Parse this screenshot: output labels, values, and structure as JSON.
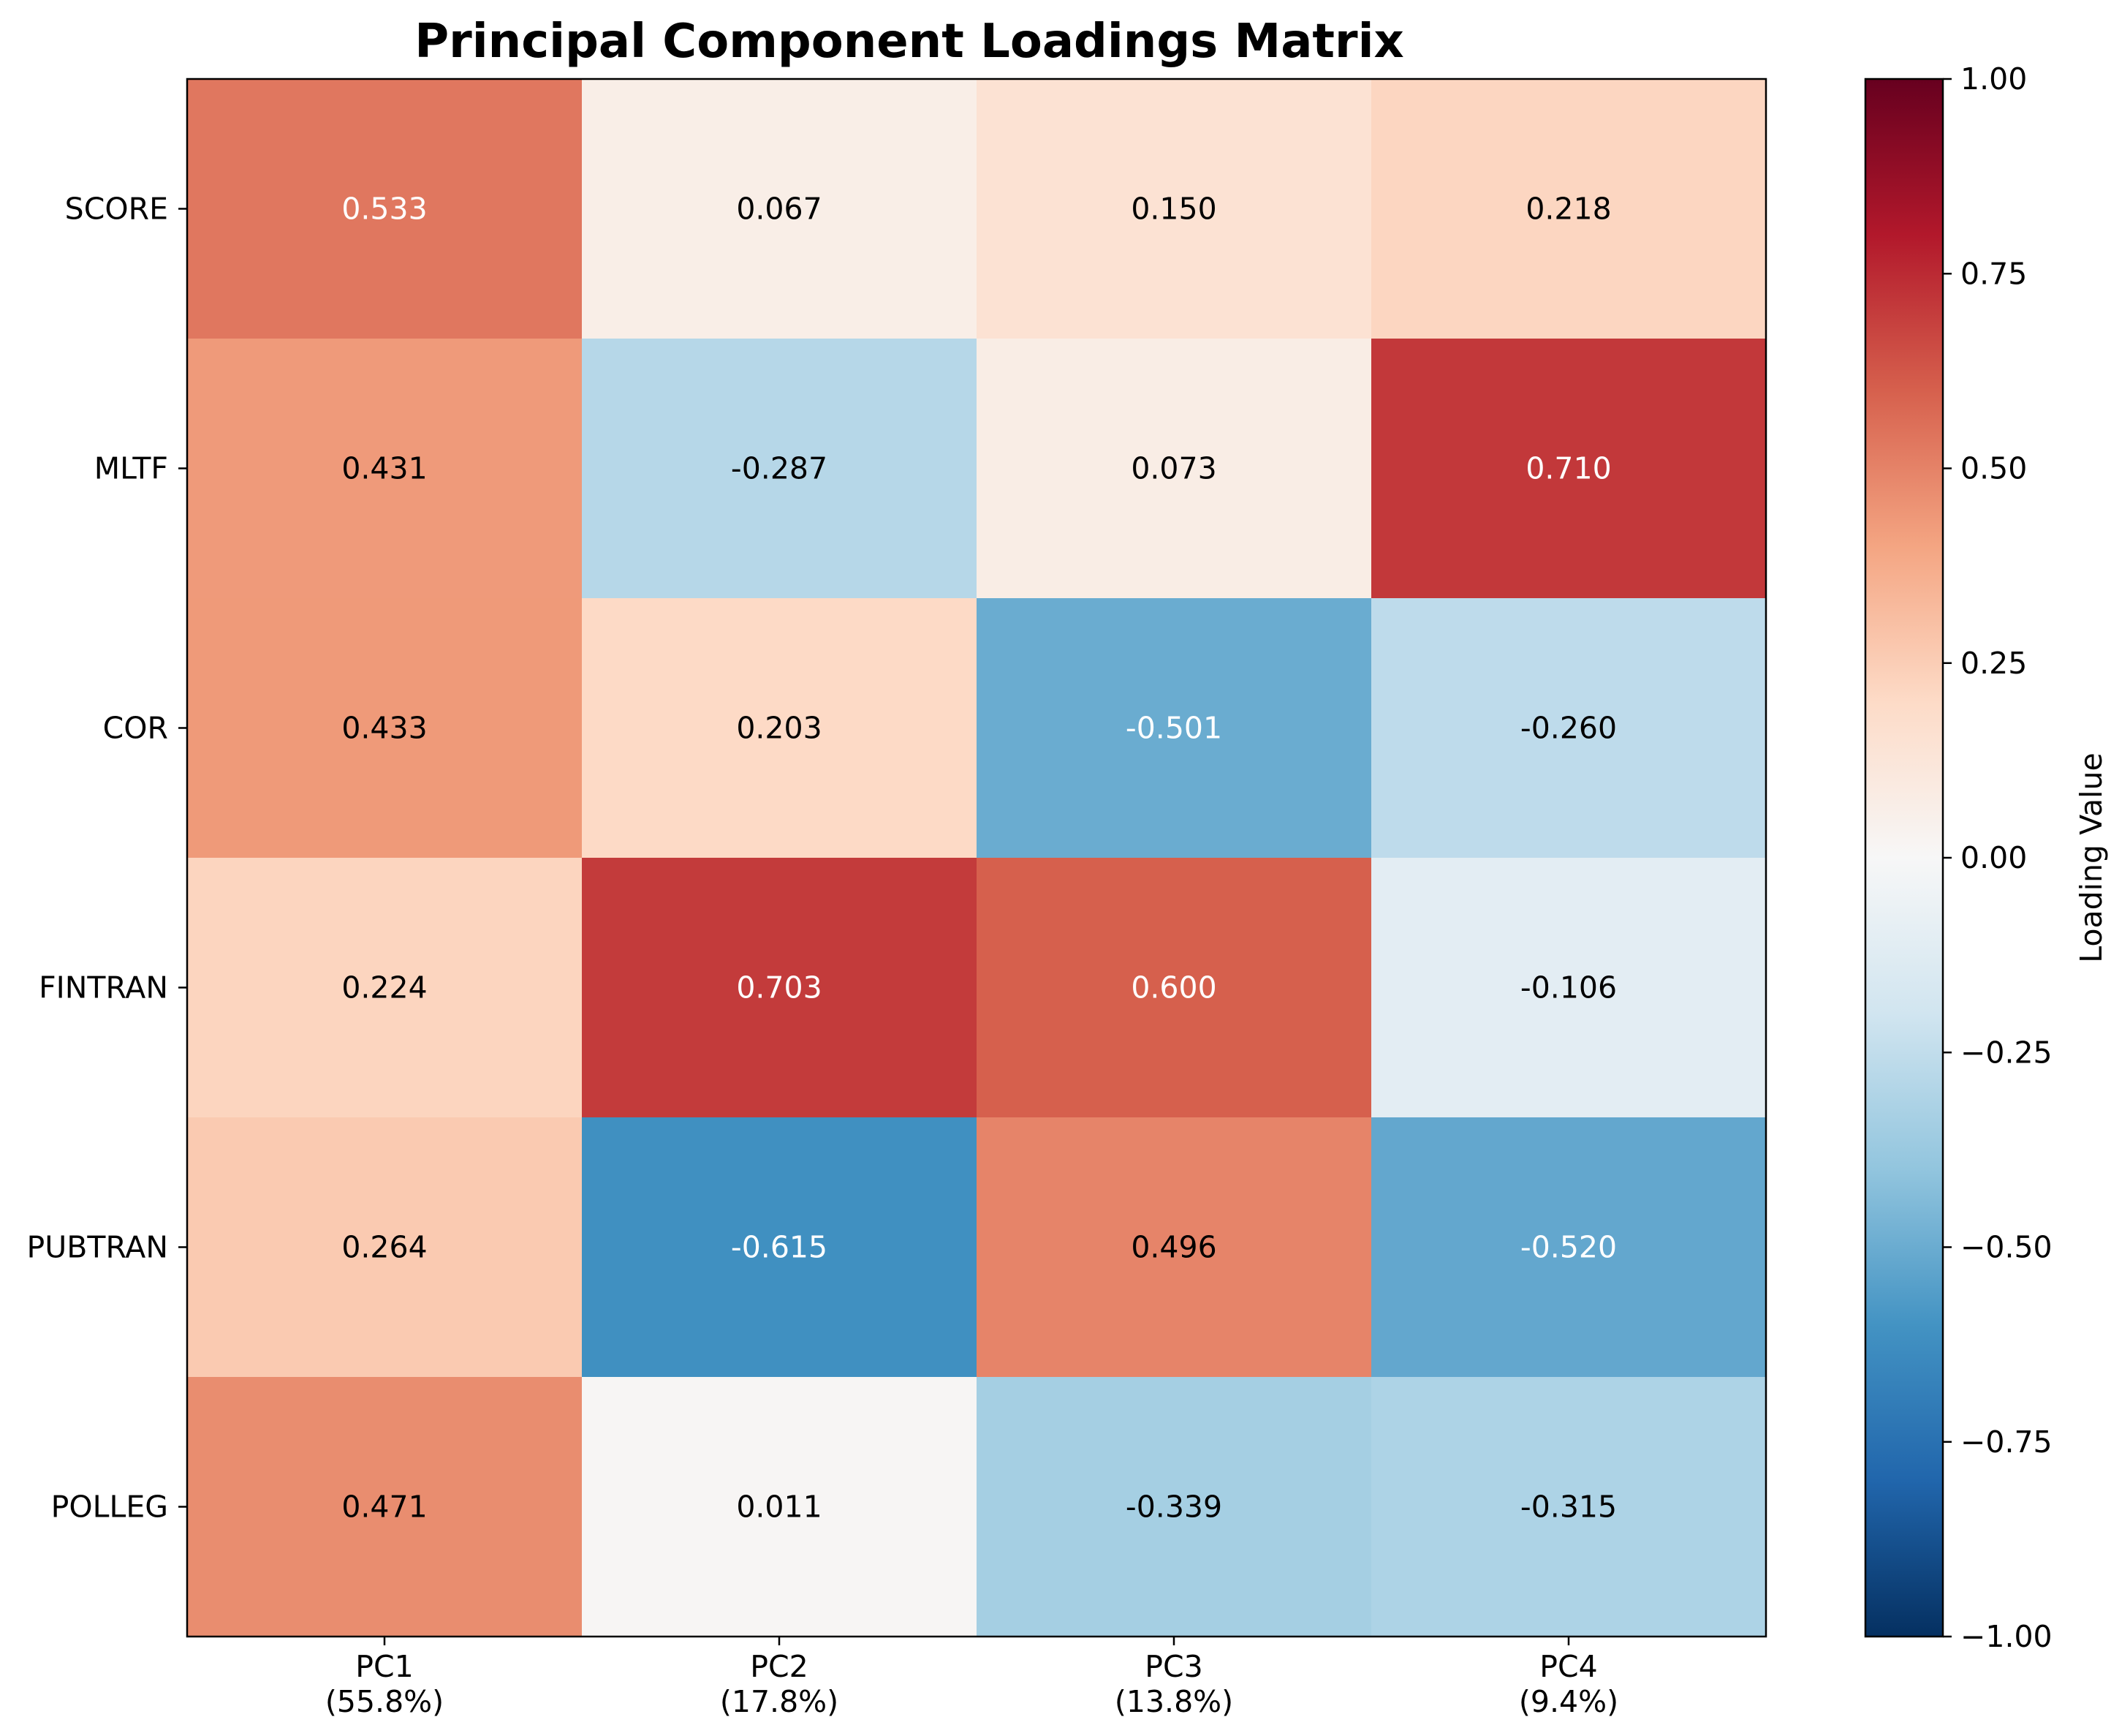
{
  "chart_data": {
    "type": "heatmap",
    "title": "Principal Component Loadings Matrix",
    "rows": [
      "SCORE",
      "MLTF",
      "COR",
      "FINTRAN",
      "PUBTRAN",
      "POLLEG"
    ],
    "columns": [
      {
        "name": "PC1",
        "variance": "(55.8%)"
      },
      {
        "name": "PC2",
        "variance": "(17.8%)"
      },
      {
        "name": "PC3",
        "variance": "(13.8%)"
      },
      {
        "name": "PC4",
        "variance": "(9.4%)"
      }
    ],
    "values": [
      [
        0.533,
        0.067,
        0.15,
        0.218
      ],
      [
        0.431,
        -0.287,
        0.073,
        0.71
      ],
      [
        0.433,
        0.203,
        -0.501,
        -0.26
      ],
      [
        0.224,
        0.703,
        0.6,
        -0.106
      ],
      [
        0.264,
        -0.615,
        0.496,
        -0.52
      ],
      [
        0.471,
        0.011,
        -0.339,
        -0.315
      ]
    ],
    "value_labels": [
      [
        "0.533",
        "0.067",
        "0.150",
        "0.218"
      ],
      [
        "0.431",
        "-0.287",
        "0.073",
        "0.710"
      ],
      [
        "0.433",
        "0.203",
        "-0.501",
        "-0.260"
      ],
      [
        "0.224",
        "0.703",
        "0.600",
        "-0.106"
      ],
      [
        "0.264",
        "-0.615",
        "0.496",
        "-0.520"
      ],
      [
        "0.471",
        "0.011",
        "-0.339",
        "-0.315"
      ]
    ],
    "colormap": "RdBu_r",
    "vmin": -1.0,
    "vmax": 1.0,
    "colorbar": {
      "label": "Loading Value",
      "ticks": [
        1.0,
        0.75,
        0.5,
        0.25,
        0.0,
        -0.25,
        -0.5,
        -0.75,
        -1.0
      ],
      "tick_labels": [
        "1.00",
        "0.75",
        "0.50",
        "0.25",
        "0.00",
        "−0.25",
        "−0.50",
        "−0.75",
        "−1.00"
      ]
    },
    "grid": false
  }
}
